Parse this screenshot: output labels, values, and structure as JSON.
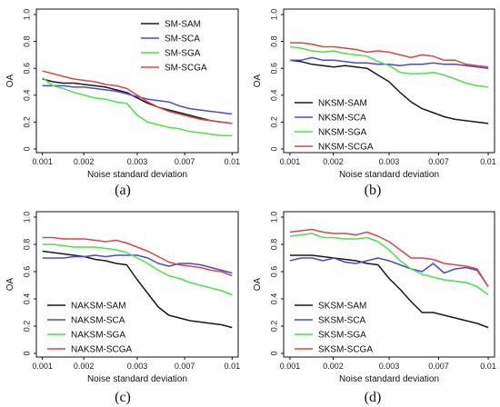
{
  "colors": {
    "black": "#1a1a1a",
    "blue": "#4a4ad8",
    "green": "#45e645",
    "red": "#e04545"
  },
  "chart_data": [
    {
      "type": "line",
      "caption": "(a)",
      "xlabel": "Noise standard deviation",
      "ylabel": "OA",
      "x_ticks": [
        "0.001",
        "0.002",
        "0.003",
        "0.007",
        "0.01"
      ],
      "y_ticks": [
        "0",
        "0.2",
        "0.4",
        "0.6",
        "0.8",
        "1.0"
      ],
      "ylim": [
        0,
        1.0
      ],
      "grid": false,
      "legend": "top-right",
      "x": [
        0.001,
        0.0015,
        0.002,
        0.0025,
        0.003,
        0.0035,
        0.004,
        0.0045,
        0.005,
        0.0055,
        0.006,
        0.0065,
        0.007,
        0.0075,
        0.008,
        0.0085,
        0.009,
        0.0095,
        0.01
      ],
      "series": [
        {
          "name": "SM-SAM",
          "color": "black",
          "values": [
            0.52,
            0.5,
            0.49,
            0.49,
            0.48,
            0.47,
            0.46,
            0.44,
            0.42,
            0.38,
            0.34,
            0.31,
            0.29,
            0.27,
            0.25,
            0.23,
            0.21,
            0.2,
            0.19
          ]
        },
        {
          "name": "SM-SCA",
          "color": "blue",
          "values": [
            0.47,
            0.47,
            0.47,
            0.46,
            0.46,
            0.45,
            0.44,
            0.43,
            0.41,
            0.39,
            0.37,
            0.36,
            0.35,
            0.32,
            0.3,
            0.29,
            0.28,
            0.27,
            0.26
          ]
        },
        {
          "name": "SM-SGA",
          "color": "green",
          "values": [
            0.53,
            0.47,
            0.45,
            0.42,
            0.4,
            0.38,
            0.37,
            0.35,
            0.34,
            0.25,
            0.2,
            0.18,
            0.16,
            0.15,
            0.13,
            0.12,
            0.11,
            0.1,
            0.1
          ]
        },
        {
          "name": "SM-SCGA",
          "color": "red",
          "values": [
            0.58,
            0.56,
            0.54,
            0.52,
            0.51,
            0.5,
            0.48,
            0.47,
            0.45,
            0.4,
            0.35,
            0.31,
            0.28,
            0.26,
            0.24,
            0.22,
            0.21,
            0.2,
            0.19
          ]
        }
      ]
    },
    {
      "type": "line",
      "caption": "(b)",
      "xlabel": "Noise standard deviation",
      "ylabel": "OA",
      "x_ticks": [
        "0.001",
        "0.002",
        "0.003",
        "0.007",
        "0.01"
      ],
      "y_ticks": [
        "0",
        "0.2",
        "0.4",
        "0.6",
        "0.8",
        "1.0"
      ],
      "ylim": [
        0,
        1.0
      ],
      "grid": false,
      "legend": "bottom-left",
      "x": [
        0.001,
        0.0015,
        0.002,
        0.0025,
        0.003,
        0.0035,
        0.004,
        0.0045,
        0.005,
        0.0055,
        0.006,
        0.0065,
        0.007,
        0.0075,
        0.008,
        0.0085,
        0.009,
        0.0095,
        0.01
      ],
      "series": [
        {
          "name": "NKSM-SAM",
          "color": "black",
          "values": [
            0.66,
            0.65,
            0.63,
            0.62,
            0.61,
            0.62,
            0.61,
            0.6,
            0.55,
            0.5,
            0.42,
            0.35,
            0.3,
            0.27,
            0.24,
            0.22,
            0.21,
            0.2,
            0.19
          ]
        },
        {
          "name": "NKSM-SCA",
          "color": "blue",
          "values": [
            0.66,
            0.66,
            0.68,
            0.66,
            0.66,
            0.65,
            0.64,
            0.64,
            0.63,
            0.63,
            0.62,
            0.63,
            0.63,
            0.64,
            0.63,
            0.63,
            0.62,
            0.61,
            0.6
          ]
        },
        {
          "name": "NKSM-SGA",
          "color": "green",
          "values": [
            0.76,
            0.75,
            0.73,
            0.72,
            0.73,
            0.71,
            0.7,
            0.69,
            0.65,
            0.62,
            0.57,
            0.56,
            0.56,
            0.57,
            0.55,
            0.52,
            0.49,
            0.47,
            0.46
          ]
        },
        {
          "name": "NKSM-SCGA",
          "color": "red",
          "values": [
            0.79,
            0.79,
            0.78,
            0.76,
            0.76,
            0.75,
            0.74,
            0.72,
            0.73,
            0.72,
            0.7,
            0.68,
            0.7,
            0.69,
            0.66,
            0.66,
            0.63,
            0.62,
            0.61
          ]
        }
      ]
    },
    {
      "type": "line",
      "caption": "(c)",
      "xlabel": "Noise standard deviation",
      "ylabel": "OA",
      "x_ticks": [
        "0.001",
        "0.002",
        "0.003",
        "0.007",
        "0.01"
      ],
      "y_ticks": [
        "0",
        "0.2",
        "0.4",
        "0.6",
        "0.8",
        "1.0"
      ],
      "ylim": [
        0,
        1.0
      ],
      "grid": false,
      "legend": "bottom-left",
      "x": [
        0.001,
        0.0015,
        0.002,
        0.0025,
        0.003,
        0.0035,
        0.004,
        0.0045,
        0.005,
        0.0055,
        0.006,
        0.0065,
        0.007,
        0.0075,
        0.008,
        0.0085,
        0.009,
        0.0095,
        0.01
      ],
      "series": [
        {
          "name": "NAKSM-SAM",
          "color": "black",
          "values": [
            0.75,
            0.74,
            0.73,
            0.72,
            0.71,
            0.69,
            0.68,
            0.66,
            0.65,
            0.54,
            0.44,
            0.34,
            0.28,
            0.26,
            0.24,
            0.23,
            0.22,
            0.21,
            0.19
          ]
        },
        {
          "name": "NAKSM-SCA",
          "color": "blue",
          "values": [
            0.7,
            0.7,
            0.7,
            0.71,
            0.71,
            0.72,
            0.71,
            0.72,
            0.72,
            0.72,
            0.7,
            0.66,
            0.64,
            0.66,
            0.66,
            0.65,
            0.63,
            0.61,
            0.59
          ]
        },
        {
          "name": "NAKSM-SGA",
          "color": "green",
          "values": [
            0.8,
            0.8,
            0.79,
            0.78,
            0.78,
            0.78,
            0.77,
            0.76,
            0.74,
            0.7,
            0.66,
            0.61,
            0.57,
            0.55,
            0.52,
            0.5,
            0.48,
            0.46,
            0.43
          ]
        },
        {
          "name": "NAKSM-SCGA",
          "color": "red",
          "values": [
            0.85,
            0.85,
            0.84,
            0.84,
            0.84,
            0.83,
            0.82,
            0.83,
            0.81,
            0.78,
            0.75,
            0.71,
            0.67,
            0.65,
            0.64,
            0.63,
            0.61,
            0.6,
            0.57
          ]
        }
      ]
    },
    {
      "type": "line",
      "caption": "(d)",
      "xlabel": "Noise standard deviation",
      "ylabel": "OA",
      "x_ticks": [
        "0.001",
        "0.002",
        "0.003",
        "0.007",
        "0.01"
      ],
      "y_ticks": [
        "0",
        "0.2",
        "0.4",
        "0.6",
        "0.8",
        "1.0"
      ],
      "ylim": [
        0,
        1.0
      ],
      "grid": false,
      "legend": "bottom-left",
      "x": [
        0.001,
        0.0015,
        0.002,
        0.0025,
        0.003,
        0.0035,
        0.004,
        0.0045,
        0.005,
        0.0055,
        0.006,
        0.0065,
        0.007,
        0.0075,
        0.008,
        0.0085,
        0.009,
        0.0095,
        0.01
      ],
      "series": [
        {
          "name": "SKSM-SAM",
          "color": "black",
          "values": [
            0.72,
            0.72,
            0.72,
            0.71,
            0.7,
            0.69,
            0.68,
            0.66,
            0.65,
            0.55,
            0.47,
            0.38,
            0.3,
            0.3,
            0.28,
            0.26,
            0.24,
            0.22,
            0.19
          ]
        },
        {
          "name": "SKSM-SCA",
          "color": "blue",
          "values": [
            0.68,
            0.7,
            0.7,
            0.68,
            0.7,
            0.67,
            0.66,
            0.68,
            0.7,
            0.68,
            0.65,
            0.62,
            0.6,
            0.66,
            0.59,
            0.62,
            0.63,
            0.61,
            0.49
          ]
        },
        {
          "name": "SKSM-SGA",
          "color": "green",
          "values": [
            0.86,
            0.87,
            0.88,
            0.85,
            0.85,
            0.84,
            0.84,
            0.85,
            0.82,
            0.76,
            0.68,
            0.62,
            0.58,
            0.56,
            0.54,
            0.53,
            0.52,
            0.49,
            0.43
          ]
        },
        {
          "name": "SKSM-SCGA",
          "color": "red",
          "values": [
            0.89,
            0.9,
            0.91,
            0.89,
            0.88,
            0.88,
            0.87,
            0.89,
            0.86,
            0.82,
            0.76,
            0.7,
            0.7,
            0.69,
            0.66,
            0.65,
            0.64,
            0.62,
            0.49
          ]
        }
      ]
    }
  ]
}
